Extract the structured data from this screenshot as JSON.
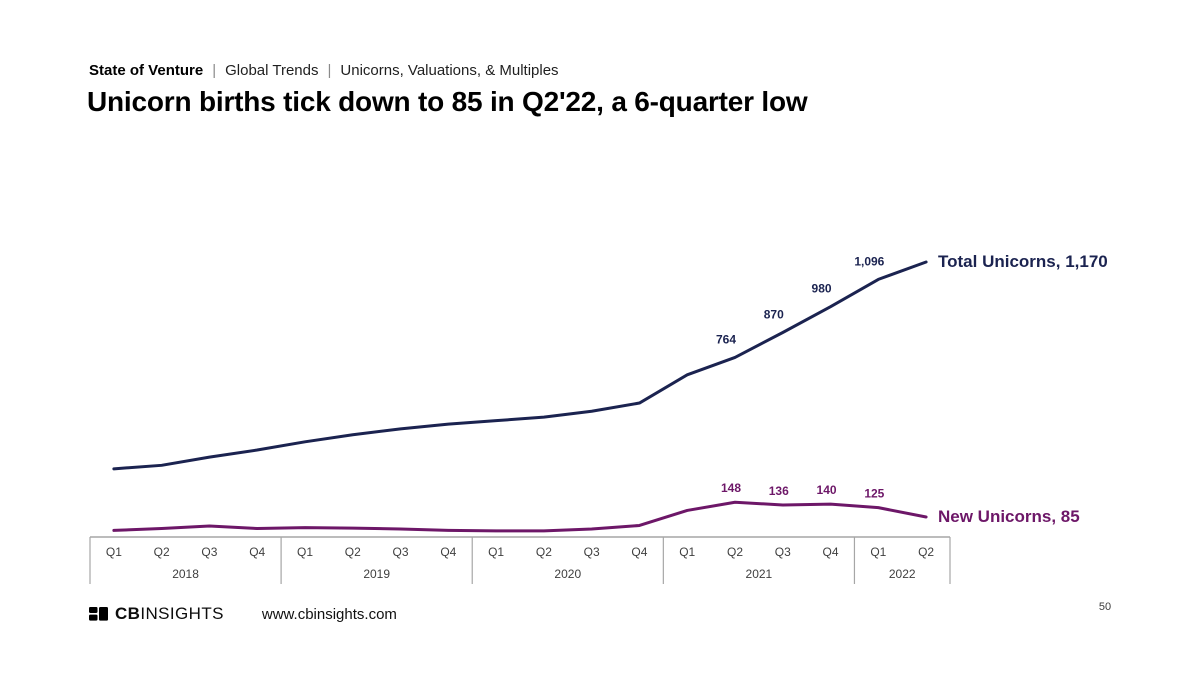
{
  "page": {
    "breadcrumb": {
      "section": "State of Venture",
      "sep": "|",
      "trail_1": "Global Trends",
      "trail_2": "Unicorns, Valuations, & Multiples"
    },
    "title": "Unicorn births tick down to 85 in Q2'22, a 6-quarter low",
    "page_number": "50"
  },
  "footer": {
    "logo_bold": "CB",
    "logo_rest": "INSIGHTS",
    "logo_icon": "cbinsights-blocks-mark",
    "website": "www.cbinsights.com"
  },
  "colors": {
    "total_line": "#1b2350",
    "new_line": "#6d1768",
    "axis": "#a6a6a6",
    "axis_text": "#3f3f3f",
    "title_text": "#000000"
  },
  "chart_data": {
    "type": "line",
    "title": "Unicorn births tick down to 85 in Q2'22, a 6-quarter low",
    "xlabel": "",
    "ylabel": "",
    "ylim": [
      0,
      1170
    ],
    "grid": false,
    "legend_position": "end-of-line",
    "x_groups": [
      {
        "year": "2018",
        "quarters": [
          "Q1",
          "Q2",
          "Q3",
          "Q4"
        ]
      },
      {
        "year": "2019",
        "quarters": [
          "Q1",
          "Q2",
          "Q3",
          "Q4"
        ]
      },
      {
        "year": "2020",
        "quarters": [
          "Q1",
          "Q2",
          "Q3",
          "Q4"
        ]
      },
      {
        "year": "2021",
        "quarters": [
          "Q1",
          "Q2",
          "Q3",
          "Q4"
        ]
      },
      {
        "year": "2022",
        "quarters": [
          "Q1",
          "Q2"
        ]
      }
    ],
    "categories": [
      "Q1 2018",
      "Q2 2018",
      "Q3 2018",
      "Q4 2018",
      "Q1 2019",
      "Q2 2019",
      "Q3 2019",
      "Q4 2019",
      "Q1 2020",
      "Q2 2020",
      "Q3 2020",
      "Q4 2020",
      "Q1 2021",
      "Q2 2021",
      "Q3 2021",
      "Q4 2021",
      "Q1 2022",
      "Q2 2022"
    ],
    "series": [
      {
        "name": "Total Unicorns",
        "color": "#1b2350",
        "values": [
          290,
          305,
          340,
          370,
          405,
          435,
          460,
          480,
          495,
          510,
          535,
          570,
          690,
          764,
          870,
          980,
          1096,
          1170
        ],
        "point_labels": {
          "13": "764",
          "14": "870",
          "15": "980",
          "16": "1,096"
        },
        "end_label": "Total Unicorns, 1,170"
      },
      {
        "name": "New Unicorns",
        "color": "#6d1768",
        "values": [
          28,
          36,
          47,
          36,
          40,
          38,
          34,
          28,
          26,
          26,
          34,
          49,
          113,
          148,
          136,
          140,
          125,
          85
        ],
        "point_labels": {
          "13": "148",
          "14": "136",
          "15": "140",
          "16": "125"
        },
        "end_label": "New Unicorns, 85"
      }
    ]
  }
}
